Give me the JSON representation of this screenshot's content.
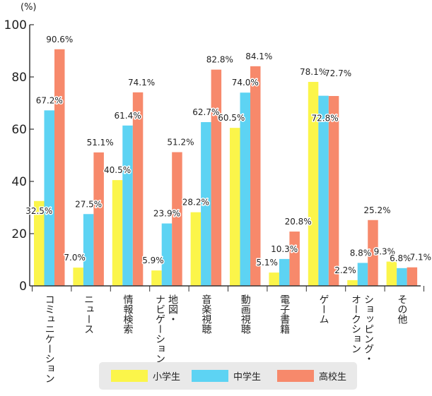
{
  "chart_data": {
    "type": "bar",
    "unit_label": "(%)",
    "ylim": [
      0,
      100
    ],
    "yticks": [
      0,
      20,
      40,
      60,
      80,
      100
    ],
    "grid": false,
    "legend_position": "bottom-center",
    "categories": [
      "コミュニケーション",
      "ニュース",
      "情報検索",
      "地図・ナビゲーション",
      "音楽視聴",
      "動画視聴",
      "電子書籍",
      "ゲーム",
      "ショッピング・オークション",
      "その他"
    ],
    "category_lines": [
      [
        "コミュニケーション"
      ],
      [
        "ニュース"
      ],
      [
        "情報検索"
      ],
      [
        "地図・",
        "ナビゲーション"
      ],
      [
        "音楽視聴"
      ],
      [
        "動画視聴"
      ],
      [
        "電子書籍"
      ],
      [
        "ゲーム"
      ],
      [
        "ショッピング・",
        "オークション"
      ],
      [
        "その他"
      ]
    ],
    "series": [
      {
        "name": "小学生",
        "color": "#fbf54a",
        "values": [
          32.5,
          7.0,
          40.5,
          5.9,
          28.2,
          60.5,
          5.1,
          78.1,
          2.2,
          9.3
        ]
      },
      {
        "name": "中学生",
        "color": "#5dd3f3",
        "values": [
          67.2,
          27.5,
          61.4,
          23.9,
          62.7,
          74.0,
          10.3,
          72.8,
          8.8,
          6.8
        ]
      },
      {
        "name": "高校生",
        "color": "#f7896b",
        "values": [
          90.6,
          51.1,
          74.1,
          51.2,
          82.8,
          84.1,
          20.8,
          72.7,
          25.2,
          7.1
        ]
      }
    ]
  }
}
